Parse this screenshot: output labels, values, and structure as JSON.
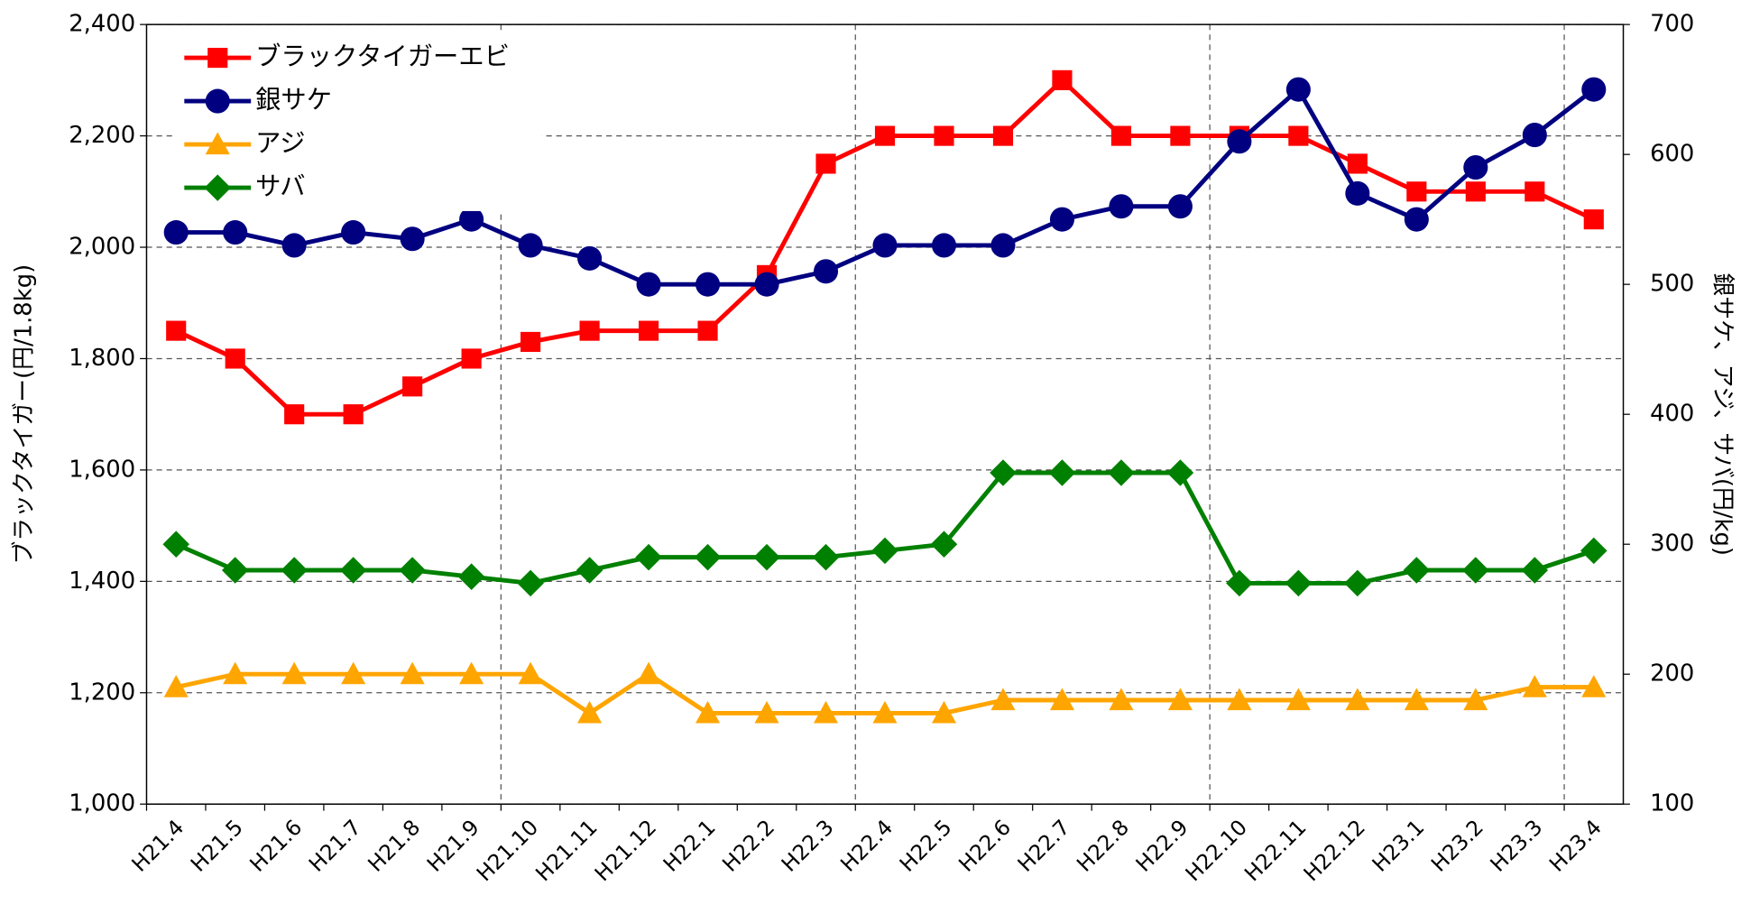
{
  "chart_data": {
    "type": "line",
    "categories": [
      "H21.4",
      "H21.5",
      "H21.6",
      "H21.7",
      "H21.8",
      "H21.9",
      "H21.10",
      "H21.11",
      "H21.12",
      "H22.1",
      "H22.2",
      "H22.3",
      "H22.4",
      "H22.5",
      "H22.6",
      "H22.7",
      "H22.8",
      "H22.9",
      "H22.10",
      "H22.11",
      "H22.12",
      "H23.1",
      "H23.2",
      "H23.3",
      "H23.4"
    ],
    "ylabel": "ブラックタイガー(円/1.8kg)",
    "y2label": "銀サケ、アジ、サバ(円/kg)",
    "ylim": [
      1000,
      2400
    ],
    "yticks": [
      {
        "value": 1000,
        "label": "1,000"
      },
      {
        "value": 1200,
        "label": "1,200"
      },
      {
        "value": 1400,
        "label": "1,400"
      },
      {
        "value": 1600,
        "label": "1,600"
      },
      {
        "value": 1800,
        "label": "1,800"
      },
      {
        "value": 2000,
        "label": "2,000"
      },
      {
        "value": 2200,
        "label": "2,200"
      },
      {
        "value": 2400,
        "label": "2,400"
      }
    ],
    "y2lim": [
      100,
      700
    ],
    "y2ticks": [
      100,
      200,
      300,
      400,
      500,
      600,
      700
    ],
    "grid": true,
    "legend": "upper left",
    "series": [
      {
        "name": "ブラックタイガーエビ",
        "color": "#ff0000",
        "marker": "square",
        "values": [
          1850,
          1800,
          1700,
          1700,
          1750,
          1800,
          1830,
          1850,
          1850,
          1850,
          1950,
          2150,
          2200,
          2200,
          2200,
          2300,
          2200,
          2200,
          2200,
          2200,
          2150,
          2100,
          2100,
          2100,
          2050
        ]
      },
      {
        "name": "銀サケ",
        "color": "#000080",
        "marker": "circle",
        "axis": "y2",
        "values": [
          540,
          540,
          530,
          540,
          535,
          550,
          530,
          520,
          500,
          500,
          500,
          510,
          530,
          530,
          530,
          550,
          560,
          560,
          610,
          650,
          570,
          550,
          590,
          615,
          650
        ]
      },
      {
        "name": "アジ",
        "color": "#ffa500",
        "marker": "triangle",
        "axis": "y2",
        "values": [
          190,
          200,
          200,
          200,
          200,
          200,
          200,
          170,
          200,
          170,
          170,
          170,
          170,
          170,
          180,
          180,
          180,
          180,
          180,
          180,
          180,
          180,
          180,
          190,
          190
        ]
      },
      {
        "name": "サバ",
        "color": "#008000",
        "marker": "diamond",
        "axis": "y2",
        "values": [
          300,
          280,
          280,
          280,
          280,
          275,
          270,
          280,
          290,
          290,
          290,
          290,
          295,
          300,
          355,
          355,
          355,
          355,
          270,
          270,
          270,
          280,
          280,
          280,
          295
        ]
      }
    ]
  }
}
